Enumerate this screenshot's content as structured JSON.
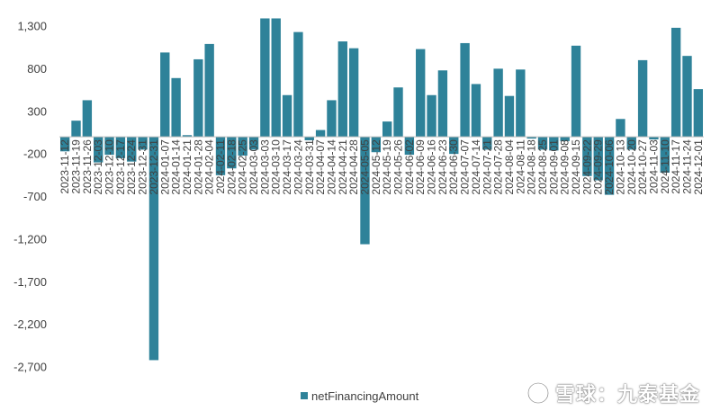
{
  "chart_data": {
    "type": "bar",
    "series": [
      {
        "name": "netFinancingAmount",
        "color": "#2e8299",
        "values": [
          -170,
          190,
          430,
          -300,
          -210,
          -250,
          -290,
          -150,
          -2620,
          990,
          690,
          20,
          910,
          1090,
          -450,
          -370,
          -220,
          -150,
          1390,
          1390,
          490,
          1230,
          -40,
          80,
          430,
          1120,
          1040,
          -1260,
          -180,
          180,
          580,
          -210,
          1030,
          490,
          780,
          -200,
          1100,
          620,
          -150,
          800,
          480,
          790,
          -20,
          -150,
          -160,
          -50,
          1070,
          -460,
          -510,
          -680,
          210,
          -150,
          900,
          -30,
          -420,
          1280,
          950,
          560
        ]
      }
    ],
    "categories": [
      "2023-11-12",
      "2023-11-19",
      "2023-11-26",
      "2023-12-03",
      "2023-12-10",
      "2023-12-17",
      "2023-12-24",
      "2023-12-31",
      "2023-12-31",
      "2024-01-07",
      "2024-01-14",
      "2024-01-21",
      "2024-01-28",
      "2024-02-04",
      "2024-02-11",
      "2024-02-18",
      "2024-02-25",
      "2024-03-03",
      "2024-03-03",
      "2024-03-10",
      "2024-03-17",
      "2024-03-24",
      "2024-03-31",
      "2024-04-07",
      "2024-04-14",
      "2024-04-21",
      "2024-04-28",
      "2024-05-05",
      "2024-05-12",
      "2024-05-19",
      "2024-05-26",
      "2024-06-02",
      "2024-06-09",
      "2024-06-16",
      "2024-06-23",
      "2024-06-30",
      "2024-07-07",
      "2024-07-14",
      "2024-07-21",
      "2024-07-28",
      "2024-08-04",
      "2024-08-11",
      "2024-08-18",
      "2024-08-25",
      "2024-09-01",
      "2024-09-08",
      "2024-09-15",
      "2024-09-22",
      "2024-09-29",
      "2024-10-06",
      "2024-10-13",
      "2024-10-20",
      "2024-10-27",
      "2024-11-03",
      "2024-11-10",
      "2024-11-17",
      "2024-11-24",
      "2024-12-01"
    ],
    "y_ticks": [
      "1,300",
      "800",
      "300",
      "-200",
      "-700",
      "-1,200",
      "-1,700",
      "-2,200",
      "-2,700"
    ],
    "ylim": [
      -2700,
      1300
    ],
    "legend": "bottom",
    "grid": false
  },
  "watermark": {
    "text": "雪球：九泰基金"
  }
}
